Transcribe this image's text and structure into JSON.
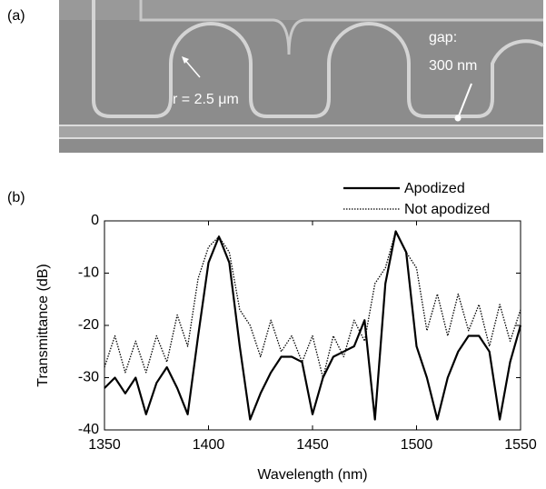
{
  "chart_data": {
    "type": "line",
    "panel_labels": [
      "(a)",
      "(b)"
    ],
    "annotations": [
      "r = 2.5 μm",
      "gap:",
      "300 nm"
    ],
    "xlabel": "Wavelength (nm)",
    "ylabel": "Transmittance (dB)",
    "x": [
      1350,
      1355,
      1360,
      1365,
      1370,
      1375,
      1380,
      1385,
      1390,
      1395,
      1400,
      1405,
      1410,
      1415,
      1420,
      1425,
      1430,
      1435,
      1440,
      1445,
      1450,
      1455,
      1460,
      1465,
      1470,
      1475,
      1480,
      1485,
      1490,
      1495,
      1500,
      1505,
      1510,
      1515,
      1520,
      1525,
      1530,
      1535,
      1540,
      1545,
      1550
    ],
    "series": [
      {
        "name": "Apodized",
        "color": "#000000",
        "style": "solid",
        "values": [
          -32,
          -30,
          -33,
          -30,
          -37,
          -31,
          -28,
          -32,
          -37,
          -22,
          -8,
          -3,
          -8,
          -24,
          -38,
          -33,
          -29,
          -26,
          -26,
          -27,
          -37,
          -30,
          -26,
          -25,
          -24,
          -19,
          -38,
          -12,
          -2,
          -6,
          -24,
          -30,
          -38,
          -30,
          -25,
          -22,
          -22,
          -25,
          -38,
          -27,
          -20
        ]
      },
      {
        "name": "Not apodized",
        "color": "#000000",
        "style": "dotted",
        "values": [
          -28,
          -22,
          -29,
          -23,
          -29,
          -22,
          -27,
          -18,
          -24,
          -11,
          -5,
          -3,
          -6,
          -17,
          -20,
          -26,
          -19,
          -25,
          -22,
          -27,
          -22,
          -30,
          -22,
          -26,
          -19,
          -23,
          -12,
          -9,
          -2,
          -6,
          -9,
          -21,
          -14,
          -22,
          -14,
          -21,
          -16,
          -24,
          -16,
          -23,
          -17
        ]
      }
    ],
    "xlim": [
      1350,
      1550
    ],
    "xticks": [
      1350,
      1400,
      1450,
      1500,
      1550
    ],
    "ylim": [
      -40,
      0
    ],
    "yticks": [
      -40,
      -30,
      -20,
      -10,
      0
    ],
    "grid": false,
    "legend": "top-right"
  }
}
